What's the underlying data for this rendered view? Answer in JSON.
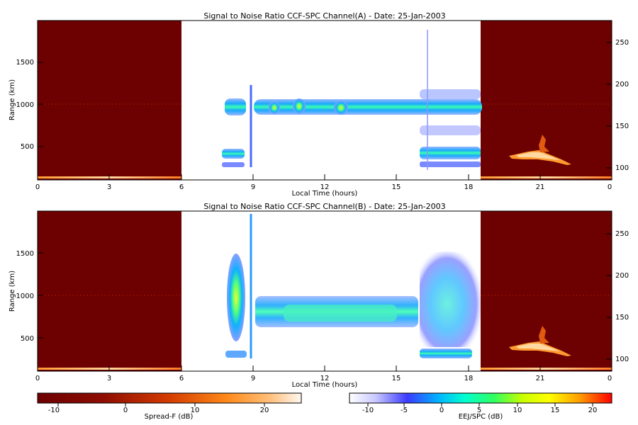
{
  "panels": [
    {
      "title": "Signal to Noise Ratio CCF-SPC Channel(A) - Date: 25-Jan-2003",
      "xlabel": "Local Time (hours)",
      "ylabel": "Range (km)"
    },
    {
      "title": "Signal to Noise Ratio CCF-SPC Channel(B) - Date: 25-Jan-2003",
      "xlabel": "Local Time (hours)",
      "ylabel": "Range (km)"
    }
  ],
  "colorbars": [
    {
      "label": "Spread-F (dB)",
      "colormap": "hot",
      "range": [
        -13,
        25
      ],
      "ticks": [
        "-10",
        "0",
        "10",
        "20"
      ]
    },
    {
      "label": "EEJ/SPC (dB)",
      "colormap": "rainbow",
      "range": [
        -13,
        23
      ],
      "ticks": [
        "-10",
        "-5",
        "0",
        "5",
        "10",
        "15",
        "20"
      ]
    }
  ],
  "chart_data": [
    {
      "type": "heatmap",
      "title": "Signal to Noise Ratio CCF-SPC Channel(A) - Date: 25-Jan-2003",
      "xlabel": "Local Time (hours)",
      "ylabel": "Range (km)",
      "xlim": [
        0,
        24
      ],
      "ylim": [
        100,
        1950
      ],
      "x_ticks": [
        "0",
        "3",
        "6",
        "9",
        "12",
        "15",
        "18",
        "21",
        "0"
      ],
      "y_ticks": [
        "500",
        "1000",
        "1500"
      ],
      "y2lim": [
        87,
        278
      ],
      "y2_ticks": [
        "100",
        "150",
        "200",
        "250"
      ],
      "spread_f_periods_hours": [
        [
          0,
          6
        ],
        [
          18.4,
          24
        ]
      ],
      "eej_spc_period_hours": [
        6,
        18.4
      ],
      "features": [
        {
          "kind": "echo layer",
          "x_hours": [
            7.8,
            18.4
          ],
          "range_km": [
            900,
            1100
          ],
          "snr_db": [
            -5,
            10
          ]
        },
        {
          "kind": "echo layer",
          "x_hours": [
            7.8,
            8.8
          ],
          "range_km": [
            250,
            450
          ],
          "snr_db": [
            -5,
            5
          ]
        },
        {
          "kind": "echo layer",
          "x_hours": [
            16.0,
            18.4
          ],
          "range_km": [
            250,
            450
          ],
          "snr_db": [
            -5,
            5
          ]
        },
        {
          "kind": "spread-F plume",
          "x_hours": [
            19.2,
            22.5
          ],
          "range_km": [
            250,
            700
          ],
          "snr_db": [
            5,
            20
          ]
        }
      ]
    },
    {
      "type": "heatmap",
      "title": "Signal to Noise Ratio CCF-SPC Channel(B) - Date: 25-Jan-2003",
      "xlabel": "Local Time (hours)",
      "ylabel": "Range (km)",
      "xlim": [
        0,
        24
      ],
      "ylim": [
        100,
        1950
      ],
      "x_ticks": [
        "0",
        "3",
        "6",
        "9",
        "12",
        "15",
        "18",
        "21",
        "0"
      ],
      "y_ticks": [
        "500",
        "1000",
        "1500"
      ],
      "y2lim": [
        87,
        278
      ],
      "y2_ticks": [
        "100",
        "150",
        "200",
        "250"
      ],
      "spread_f_periods_hours": [
        [
          0,
          6
        ],
        [
          18.4,
          24
        ]
      ],
      "eej_spc_period_hours": [
        6,
        18.4
      ],
      "features": [
        {
          "kind": "echo region",
          "x_hours": [
            7.8,
            8.8
          ],
          "range_km": [
            250,
            1200
          ],
          "snr_db": [
            -5,
            5
          ]
        },
        {
          "kind": "echo layer",
          "x_hours": [
            9.0,
            16.0
          ],
          "range_km": [
            600,
            950
          ],
          "snr_db": [
            -5,
            10
          ]
        },
        {
          "kind": "echo region",
          "x_hours": [
            16.0,
            18.4
          ],
          "range_km": [
            250,
            1650
          ],
          "snr_db": [
            -8,
            5
          ]
        },
        {
          "kind": "spread-F plume",
          "x_hours": [
            19.2,
            22.5
          ],
          "range_km": [
            250,
            700
          ],
          "snr_db": [
            5,
            20
          ]
        }
      ]
    }
  ]
}
